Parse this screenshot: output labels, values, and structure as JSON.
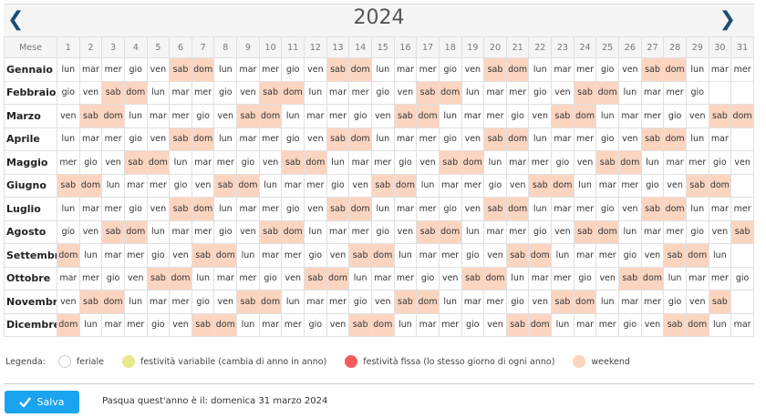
{
  "header": {
    "year": "2024",
    "prev_icon": "chevron-left-icon",
    "next_icon": "chevron-right-icon"
  },
  "table": {
    "month_header": "Mese",
    "day_numbers": [
      "1",
      "2",
      "3",
      "4",
      "5",
      "6",
      "7",
      "8",
      "9",
      "10",
      "11",
      "12",
      "13",
      "14",
      "15",
      "16",
      "17",
      "18",
      "19",
      "20",
      "21",
      "22",
      "23",
      "24",
      "25",
      "26",
      "27",
      "28",
      "29",
      "30",
      "31"
    ],
    "weekend_color": "#fcd5c1",
    "months": [
      {
        "name": "Gennaio",
        "days": [
          "lun",
          "mar",
          "mer",
          "gio",
          "ven",
          "sab",
          "dom",
          "lun",
          "mar",
          "mer",
          "gio",
          "ven",
          "sab",
          "dom",
          "lun",
          "mar",
          "mer",
          "gio",
          "ven",
          "sab",
          "dom",
          "lun",
          "mar",
          "mer",
          "gio",
          "ven",
          "sab",
          "dom",
          "lun",
          "mar",
          "mer"
        ]
      },
      {
        "name": "Febbraio",
        "days": [
          "gio",
          "ven",
          "sab",
          "dom",
          "lun",
          "mar",
          "mer",
          "gio",
          "ven",
          "sab",
          "dom",
          "lun",
          "mar",
          "mer",
          "gio",
          "ven",
          "sab",
          "dom",
          "lun",
          "mar",
          "mer",
          "gio",
          "ven",
          "sab",
          "dom",
          "lun",
          "mar",
          "mer",
          "gio"
        ]
      },
      {
        "name": "Marzo",
        "days": [
          "ven",
          "sab",
          "dom",
          "lun",
          "mar",
          "mer",
          "gio",
          "ven",
          "sab",
          "dom",
          "lun",
          "mar",
          "mer",
          "gio",
          "ven",
          "sab",
          "dom",
          "lun",
          "mar",
          "mer",
          "gio",
          "ven",
          "sab",
          "dom",
          "lun",
          "mar",
          "mer",
          "gio",
          "ven",
          "sab",
          "dom"
        ]
      },
      {
        "name": "Aprile",
        "days": [
          "lun",
          "mar",
          "mer",
          "gio",
          "ven",
          "sab",
          "dom",
          "lun",
          "mar",
          "mer",
          "gio",
          "ven",
          "sab",
          "dom",
          "lun",
          "mar",
          "mer",
          "gio",
          "ven",
          "sab",
          "dom",
          "lun",
          "mar",
          "mer",
          "gio",
          "ven",
          "sab",
          "dom",
          "lun",
          "mar"
        ]
      },
      {
        "name": "Maggio",
        "days": [
          "mer",
          "gio",
          "ven",
          "sab",
          "dom",
          "lun",
          "mar",
          "mer",
          "gio",
          "ven",
          "sab",
          "dom",
          "lun",
          "mar",
          "mer",
          "gio",
          "ven",
          "sab",
          "dom",
          "lun",
          "mar",
          "mer",
          "gio",
          "ven",
          "sab",
          "dom",
          "lun",
          "mar",
          "mer",
          "gio",
          "ven"
        ]
      },
      {
        "name": "Giugno",
        "days": [
          "sab",
          "dom",
          "lun",
          "mar",
          "mer",
          "gio",
          "ven",
          "sab",
          "dom",
          "lun",
          "mar",
          "mer",
          "gio",
          "ven",
          "sab",
          "dom",
          "lun",
          "mar",
          "mer",
          "gio",
          "ven",
          "sab",
          "dom",
          "lun",
          "mar",
          "mer",
          "gio",
          "ven",
          "sab",
          "dom"
        ]
      },
      {
        "name": "Luglio",
        "days": [
          "lun",
          "mar",
          "mer",
          "gio",
          "ven",
          "sab",
          "dom",
          "lun",
          "mar",
          "mer",
          "gio",
          "ven",
          "sab",
          "dom",
          "lun",
          "mar",
          "mer",
          "gio",
          "ven",
          "sab",
          "dom",
          "lun",
          "mar",
          "mer",
          "gio",
          "ven",
          "sab",
          "dom",
          "lun",
          "mar",
          "mer"
        ]
      },
      {
        "name": "Agosto",
        "days": [
          "gio",
          "ven",
          "sab",
          "dom",
          "lun",
          "mar",
          "mer",
          "gio",
          "ven",
          "sab",
          "dom",
          "lun",
          "mar",
          "mer",
          "gio",
          "ven",
          "sab",
          "dom",
          "lun",
          "mar",
          "mer",
          "gio",
          "ven",
          "sab",
          "dom",
          "lun",
          "mar",
          "mer",
          "gio",
          "ven",
          "sab"
        ]
      },
      {
        "name": "Settembre",
        "days": [
          "dom",
          "lun",
          "mar",
          "mer",
          "gio",
          "ven",
          "sab",
          "dom",
          "lun",
          "mar",
          "mer",
          "gio",
          "ven",
          "sab",
          "dom",
          "lun",
          "mar",
          "mer",
          "gio",
          "ven",
          "sab",
          "dom",
          "lun",
          "mar",
          "mer",
          "gio",
          "ven",
          "sab",
          "dom",
          "lun"
        ]
      },
      {
        "name": "Ottobre",
        "days": [
          "mar",
          "mer",
          "gio",
          "ven",
          "sab",
          "dom",
          "lun",
          "mar",
          "mer",
          "gio",
          "ven",
          "sab",
          "dom",
          "lun",
          "mar",
          "mer",
          "gio",
          "ven",
          "sab",
          "dom",
          "lun",
          "mar",
          "mer",
          "gio",
          "ven",
          "sab",
          "dom",
          "lun",
          "mar",
          "mer",
          "gio"
        ]
      },
      {
        "name": "Novembre",
        "days": [
          "ven",
          "sab",
          "dom",
          "lun",
          "mar",
          "mer",
          "gio",
          "ven",
          "sab",
          "dom",
          "lun",
          "mar",
          "mer",
          "gio",
          "ven",
          "sab",
          "dom",
          "lun",
          "mar",
          "mer",
          "gio",
          "ven",
          "sab",
          "dom",
          "lun",
          "mar",
          "mer",
          "gio",
          "ven",
          "sab"
        ]
      },
      {
        "name": "Dicembre",
        "days": [
          "dom",
          "lun",
          "mar",
          "mer",
          "gio",
          "ven",
          "sab",
          "dom",
          "lun",
          "mar",
          "mer",
          "gio",
          "ven",
          "sab",
          "dom",
          "lun",
          "mar",
          "mer",
          "gio",
          "ven",
          "sab",
          "dom",
          "lun",
          "mar",
          "mer",
          "gio",
          "ven",
          "sab",
          "dom",
          "lun",
          "mar"
        ]
      }
    ]
  },
  "legend": {
    "label": "Legenda:",
    "items": [
      {
        "label": "feriale",
        "color": "#ffffff"
      },
      {
        "label": "festività variabile (cambia di anno in anno)",
        "color": "#e8e88a"
      },
      {
        "label": "festività fissa (lo stesso giorno di ogni anno)",
        "color": "#f25c5c"
      },
      {
        "label": "weekend",
        "color": "#fcd5c1"
      }
    ]
  },
  "footer": {
    "save_label": "Salva",
    "save_icon": "check-icon",
    "easter_text": "Pasqua quest'anno è il: domenica 31 marzo 2024"
  }
}
